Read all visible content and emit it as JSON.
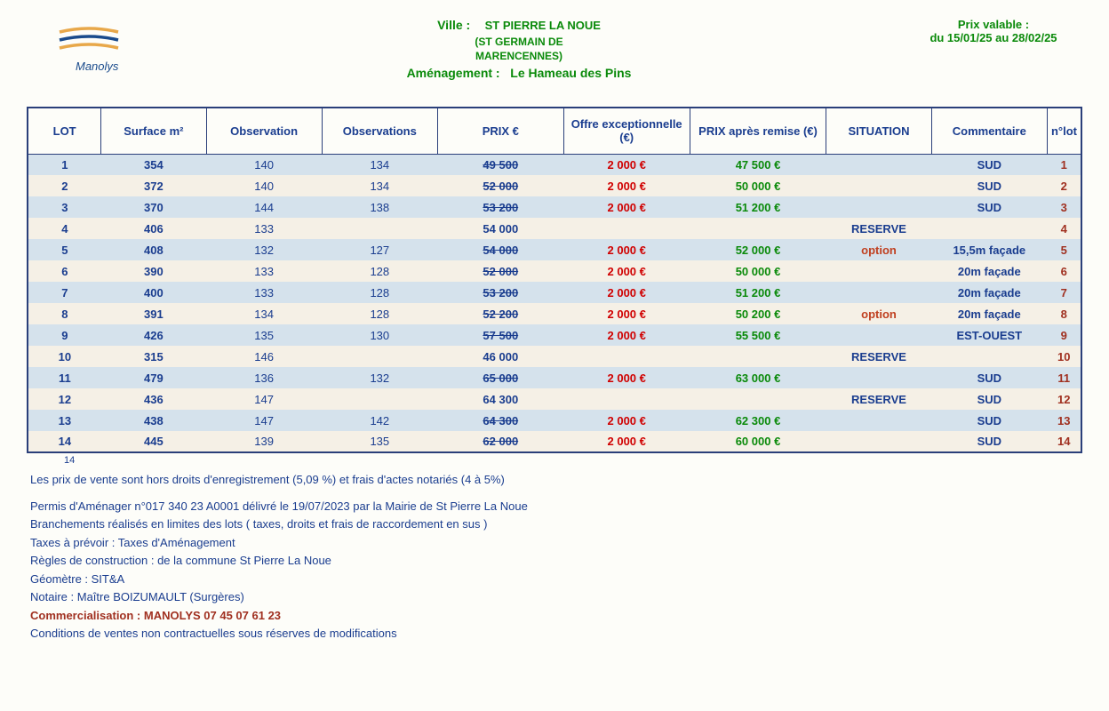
{
  "logo_name": "Manolys",
  "header": {
    "ville_label": "Ville :",
    "ville_value": "ST PIERRE LA NOUE",
    "ville_sub1": "(ST GERMAIN DE",
    "ville_sub2": "MARENCENNES)",
    "amenagement_label": "Aménagement :",
    "amenagement_value": "Le Hameau des Pins",
    "prix_valable_label": "Prix valable :",
    "prix_valable_dates": "du 15/01/25 au 28/02/25"
  },
  "columns": [
    "LOT",
    "Surface m²",
    "Observation",
    "Observations",
    "PRIX €",
    "Offre exceptionnelle (€)",
    "PRIX après remise (€)",
    "SITUATION",
    "Commentaire",
    "n°lot"
  ],
  "col_widths": [
    "7%",
    "10%",
    "11%",
    "11%",
    "12%",
    "12%",
    "13%",
    "10%",
    "11%",
    "4%"
  ],
  "rows": [
    {
      "lot": "1",
      "surface": "354",
      "obs1": "140",
      "obs2": "134",
      "prix": "49 500",
      "prix_strike": true,
      "offre": "2 000 €",
      "remise": "47 500 €",
      "situation": "",
      "sit_red": false,
      "com": "SUD",
      "nlot": "1"
    },
    {
      "lot": "2",
      "surface": "372",
      "obs1": "140",
      "obs2": "134",
      "prix": "52 000",
      "prix_strike": true,
      "offre": "2 000 €",
      "remise": "50 000 €",
      "situation": "",
      "sit_red": false,
      "com": "SUD",
      "nlot": "2"
    },
    {
      "lot": "3",
      "surface": "370",
      "obs1": "144",
      "obs2": "138",
      "prix": "53 200",
      "prix_strike": true,
      "offre": "2 000 €",
      "remise": "51 200 €",
      "situation": "",
      "sit_red": false,
      "com": "SUD",
      "nlot": "3"
    },
    {
      "lot": "4",
      "surface": "406",
      "obs1": "133",
      "obs2": "",
      "prix": "54 000",
      "prix_strike": false,
      "offre": "",
      "remise": "",
      "situation": "RESERVE",
      "sit_red": false,
      "com": "",
      "nlot": "4"
    },
    {
      "lot": "5",
      "surface": "408",
      "obs1": "132",
      "obs2": "127",
      "prix": "54 000",
      "prix_strike": true,
      "offre": "2 000 €",
      "remise": "52 000 €",
      "situation": "option",
      "sit_red": true,
      "com": "15,5m façade",
      "nlot": "5"
    },
    {
      "lot": "6",
      "surface": "390",
      "obs1": "133",
      "obs2": "128",
      "prix": "52 000",
      "prix_strike": true,
      "offre": "2 000 €",
      "remise": "50 000 €",
      "situation": "",
      "sit_red": false,
      "com": "20m façade",
      "nlot": "6"
    },
    {
      "lot": "7",
      "surface": "400",
      "obs1": "133",
      "obs2": "128",
      "prix": "53 200",
      "prix_strike": true,
      "offre": "2 000 €",
      "remise": "51 200 €",
      "situation": "",
      "sit_red": false,
      "com": "20m façade",
      "nlot": "7"
    },
    {
      "lot": "8",
      "surface": "391",
      "obs1": "134",
      "obs2": "128",
      "prix": "52 200",
      "prix_strike": true,
      "offre": "2 000 €",
      "remise": "50 200 €",
      "situation": "option",
      "sit_red": true,
      "com": "20m façade",
      "nlot": "8"
    },
    {
      "lot": "9",
      "surface": "426",
      "obs1": "135",
      "obs2": "130",
      "prix": "57 500",
      "prix_strike": true,
      "offre": "2 000 €",
      "remise": "55 500 €",
      "situation": "",
      "sit_red": false,
      "com": "EST-OUEST",
      "nlot": "9"
    },
    {
      "lot": "10",
      "surface": "315",
      "obs1": "146",
      "obs2": "",
      "prix": "46 000",
      "prix_strike": false,
      "offre": "",
      "remise": "",
      "situation": "RESERVE",
      "sit_red": false,
      "com": "",
      "nlot": "10"
    },
    {
      "lot": "11",
      "surface": "479",
      "obs1": "136",
      "obs2": "132",
      "prix": "65 000",
      "prix_strike": true,
      "offre": "2 000 €",
      "remise": "63 000 €",
      "situation": "",
      "sit_red": false,
      "com": "SUD",
      "nlot": "11"
    },
    {
      "lot": "12",
      "surface": "436",
      "obs1": "147",
      "obs2": "",
      "prix": "64 300",
      "prix_strike": false,
      "offre": "",
      "remise": "",
      "situation": "RESERVE",
      "sit_red": false,
      "com": "SUD",
      "nlot": "12"
    },
    {
      "lot": "13",
      "surface": "438",
      "obs1": "147",
      "obs2": "142",
      "prix": "64 300",
      "prix_strike": true,
      "offre": "2 000 €",
      "remise": "62 300 €",
      "situation": "",
      "sit_red": false,
      "com": "SUD",
      "nlot": "13"
    },
    {
      "lot": "14",
      "surface": "445",
      "obs1": "139",
      "obs2": "135",
      "prix": "62 000",
      "prix_strike": true,
      "offre": "2 000 €",
      "remise": "60 000 €",
      "situation": "",
      "sit_red": false,
      "com": "SUD",
      "nlot": "14"
    }
  ],
  "below_table_num": "14",
  "notes": [
    "Les prix de vente sont hors droits d'enregistrement (5,09 %) et frais d'actes notariés (4 à 5%)",
    "",
    "Permis d'Aménager n°017 340 23 A0001  délivré le 19/07/2023  par la Mairie de St Pierre La Noue",
    "Branchements réalisés en limites des lots ( taxes, droits et frais de raccordement en sus )",
    "Taxes à prévoir : Taxes d'Aménagement",
    "Règles de construction : de la commune St Pierre La Noue",
    "Géomètre :    SIT&A",
    "Notaire :       Maître BOIZUMAULT (Surgères)"
  ],
  "commercialisation": "Commercialisation : MANOLYS 07 45 07 61 23",
  "conditions": "Conditions de ventes non contractuelles sous réserves de modifications",
  "colors": {
    "blue": "#1a3d8f",
    "green": "#0a8a0a",
    "red": "#d00000",
    "orange": "#c04020",
    "border": "#2a3f7a",
    "row_odd": "#d5e2ec",
    "row_even": "#f5f0e6",
    "logo_yellow": "#e8a84a",
    "logo_blue": "#1a4b8c"
  }
}
